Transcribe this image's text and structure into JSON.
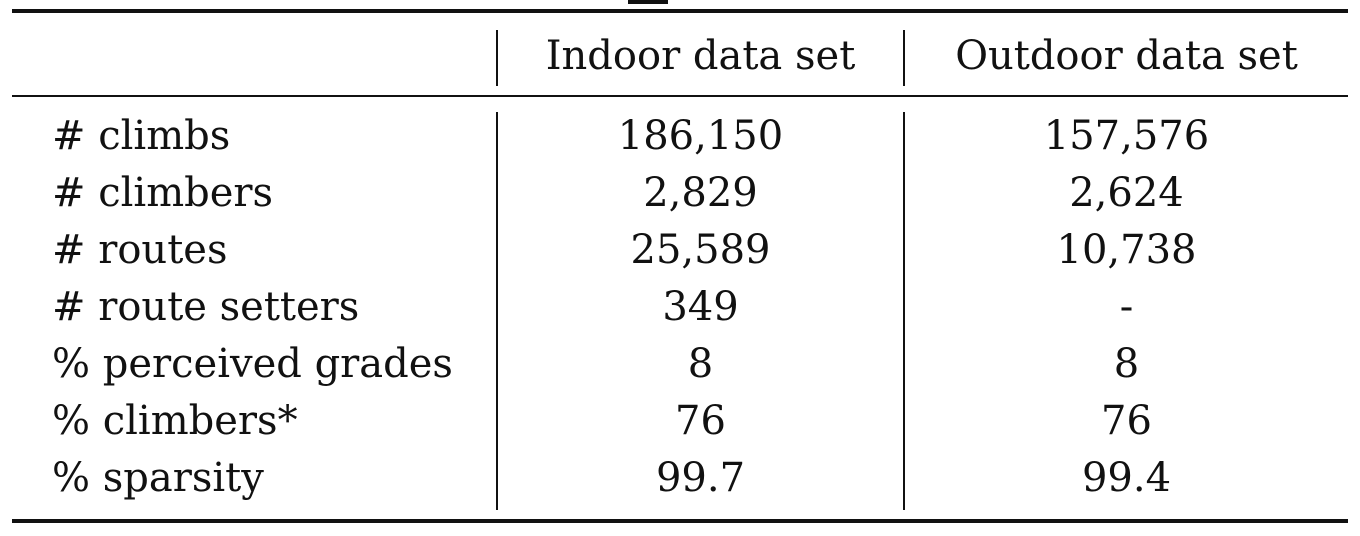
{
  "table": {
    "headers": [
      "",
      "Indoor data set",
      "Outdoor data set"
    ],
    "rows": [
      {
        "label": "# climbs",
        "indoor": "186,150",
        "outdoor": "157,576"
      },
      {
        "label": "# climbers",
        "indoor": "2,829",
        "outdoor": "2,624"
      },
      {
        "label": "# routes",
        "indoor": "25,589",
        "outdoor": "10,738"
      },
      {
        "label": "# route setters",
        "indoor": "349",
        "outdoor": "-"
      },
      {
        "label": "% perceived grades",
        "indoor": "8",
        "outdoor": "8"
      },
      {
        "label": "% climbers*",
        "indoor": "76",
        "outdoor": "76"
      },
      {
        "label": "% sparsity",
        "indoor": "99.7",
        "outdoor": "99.4"
      }
    ]
  }
}
